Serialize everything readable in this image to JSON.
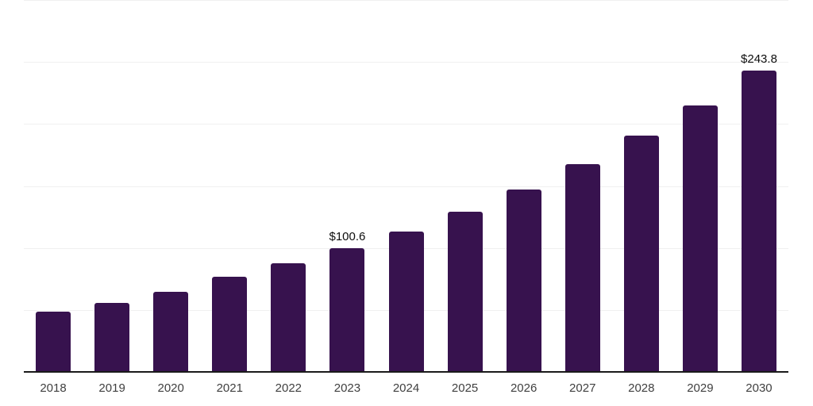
{
  "chart": {
    "background_color": "#ffffff",
    "bar_color": "#37124e",
    "gridline_color": "#f0f0f0",
    "axis_color": "#1a1a1a",
    "tick_label_color": "#404040",
    "data_label_color": "#0d0d0d"
  },
  "chart_data": {
    "type": "bar",
    "title": "",
    "xlabel": "",
    "ylabel": "",
    "categories": [
      "2018",
      "2019",
      "2020",
      "2021",
      "2022",
      "2023",
      "2024",
      "2025",
      "2026",
      "2027",
      "2028",
      "2029",
      "2030"
    ],
    "values": [
      49.2,
      56.4,
      65.2,
      77.2,
      88.4,
      100.6,
      114.1,
      129.9,
      148.0,
      168.2,
      191.0,
      215.7,
      243.8
    ],
    "data_labels": [
      "",
      "",
      "",
      "",
      "",
      "$100.6",
      "",
      "",
      "",
      "",
      "",
      "",
      "$243.8"
    ],
    "ylim": [
      0,
      300
    ],
    "gridline_values": [
      50,
      100,
      150,
      200,
      250,
      300
    ],
    "grid": "on",
    "legend": "none",
    "notes": "only 2023 and 2030 carry visible value labels; values for other years estimated from bar heights"
  }
}
